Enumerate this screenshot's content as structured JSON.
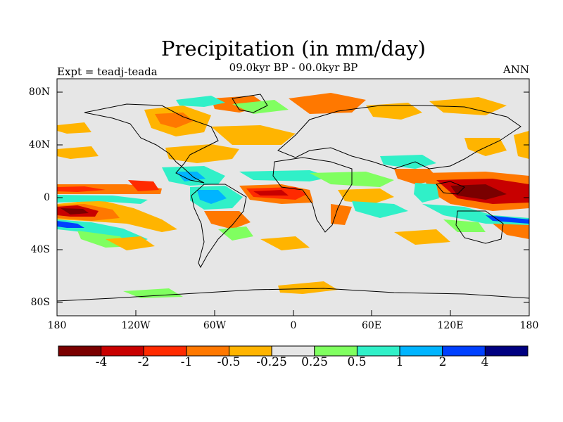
{
  "title": "Precipitation (in mm/day)",
  "subtitle": "09.0kyr BP - 00.0kyr BP",
  "left_label": "Expt = teadj-teada",
  "right_label": "ANN",
  "lat_labels": [
    "80N",
    "40N",
    "0",
    "40S",
    "80S"
  ],
  "lon_labels": [
    "180",
    "120W",
    "60W",
    "0",
    "60E",
    "120E",
    "180"
  ],
  "colorbar": {
    "labels": [
      "-4",
      "-2",
      "-1",
      "-0.5",
      "-0.25",
      "0.25",
      "0.5",
      "1",
      "2",
      "4"
    ],
    "colors": [
      "#7a0000",
      "#c80000",
      "#ff2a00",
      "#ff7800",
      "#ffb400",
      "#e6e6e6",
      "#80ff60",
      "#30f0c8",
      "#00b4ff",
      "#0040ff",
      "#000080"
    ]
  },
  "ocean_color": "#e6e6e6"
}
